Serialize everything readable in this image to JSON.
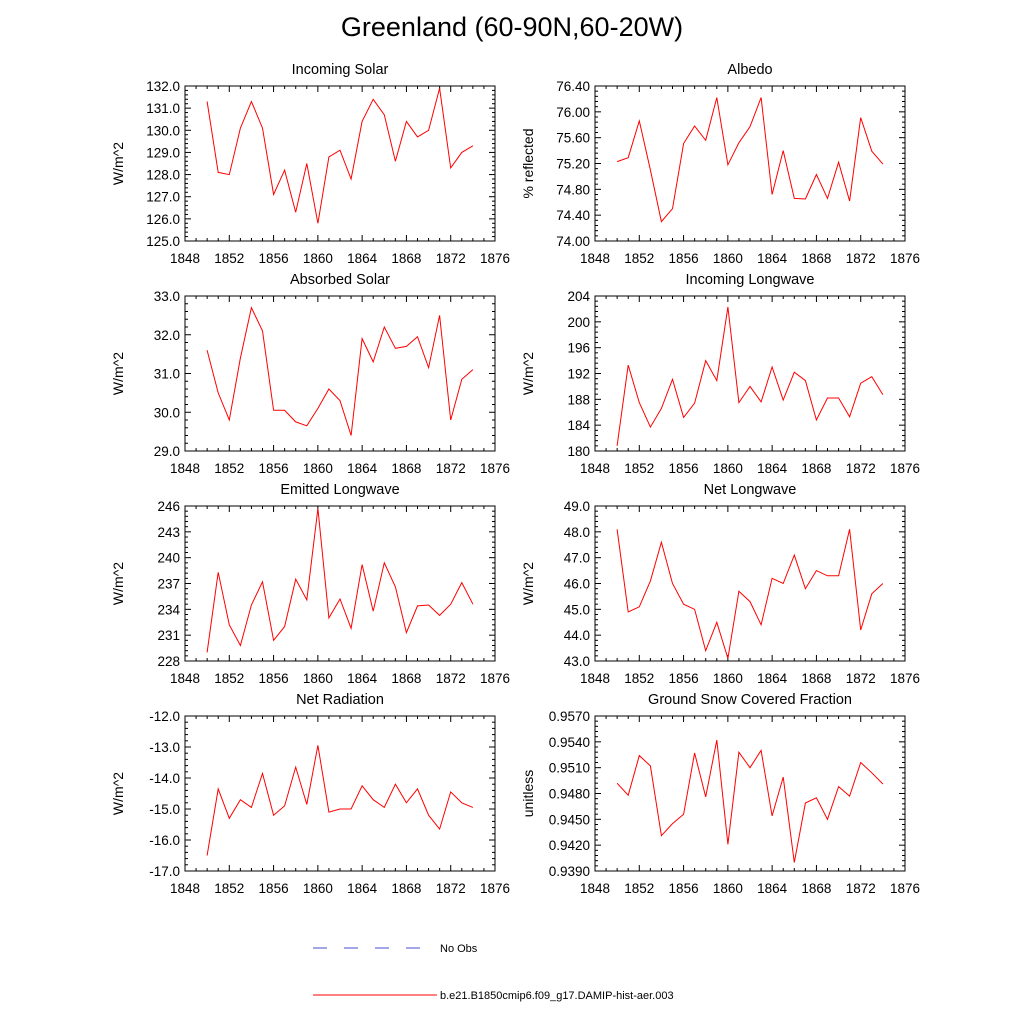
{
  "title": "Greenland (60-90N,60-20W)",
  "legend": {
    "obs_label": "No Obs",
    "model_label": "b.e21.B1850cmip6.f09_g17.DAMIP-hist-aer.003",
    "obs_color": "#4b4bd6",
    "model_color": "#ff0000"
  },
  "chart_data": [
    {
      "type": "line",
      "title": "Incoming Solar",
      "ylabel": "W/m^2",
      "xlim": [
        1848,
        1876
      ],
      "ylim": [
        125.0,
        132.0
      ],
      "x_ticks": [
        "1848",
        "1852",
        "1856",
        "1860",
        "1864",
        "1868",
        "1872",
        "1876"
      ],
      "y_ticks": [
        "125.0",
        "126.0",
        "127.0",
        "128.0",
        "129.0",
        "130.0",
        "131.0",
        "132.0"
      ],
      "x": [
        1850,
        1851,
        1852,
        1853,
        1854,
        1855,
        1856,
        1857,
        1858,
        1859,
        1860,
        1861,
        1862,
        1863,
        1864,
        1865,
        1866,
        1867,
        1868,
        1869,
        1870,
        1871,
        1872,
        1873,
        1874
      ],
      "values": [
        131.3,
        128.1,
        128.0,
        130.1,
        131.3,
        130.1,
        127.1,
        128.2,
        126.3,
        128.5,
        125.8,
        128.8,
        129.1,
        127.8,
        130.4,
        131.4,
        130.7,
        128.6,
        130.4,
        129.7,
        130.0,
        131.9,
        128.3,
        129.0,
        129.3
      ]
    },
    {
      "type": "line",
      "title": "Albedo",
      "ylabel": "% reflected",
      "xlim": [
        1848,
        1876
      ],
      "ylim": [
        74.0,
        76.4
      ],
      "x_ticks": [
        "1848",
        "1852",
        "1856",
        "1860",
        "1864",
        "1868",
        "1872",
        "1876"
      ],
      "y_ticks": [
        "74.00",
        "74.40",
        "74.80",
        "75.20",
        "75.60",
        "76.00",
        "76.40"
      ],
      "x": [
        1850,
        1851,
        1852,
        1853,
        1854,
        1855,
        1856,
        1857,
        1858,
        1859,
        1860,
        1861,
        1862,
        1863,
        1864,
        1865,
        1866,
        1867,
        1868,
        1869,
        1870,
        1871,
        1872,
        1873,
        1874
      ],
      "values": [
        75.23,
        75.29,
        75.86,
        75.1,
        74.3,
        74.5,
        75.51,
        75.78,
        75.56,
        76.22,
        75.18,
        75.52,
        75.77,
        76.22,
        74.72,
        75.4,
        74.66,
        74.65,
        75.03,
        74.66,
        75.22,
        74.62,
        75.91,
        75.39,
        75.19
      ]
    },
    {
      "type": "line",
      "title": "Absorbed Solar",
      "ylabel": "W/m^2",
      "xlim": [
        1848,
        1876
      ],
      "ylim": [
        29.0,
        33.0
      ],
      "x_ticks": [
        "1848",
        "1852",
        "1856",
        "1860",
        "1864",
        "1868",
        "1872",
        "1876"
      ],
      "y_ticks": [
        "29.0",
        "30.0",
        "31.0",
        "32.0",
        "33.0"
      ],
      "x": [
        1850,
        1851,
        1852,
        1853,
        1854,
        1855,
        1856,
        1857,
        1858,
        1859,
        1860,
        1861,
        1862,
        1863,
        1864,
        1865,
        1866,
        1867,
        1868,
        1869,
        1870,
        1871,
        1872,
        1873,
        1874
      ],
      "values": [
        31.6,
        30.5,
        29.8,
        31.4,
        32.7,
        32.1,
        30.05,
        30.05,
        29.75,
        29.65,
        30.1,
        30.6,
        30.3,
        29.4,
        31.9,
        31.3,
        32.2,
        31.65,
        31.7,
        31.95,
        31.15,
        32.5,
        29.8,
        30.85,
        31.1
      ]
    },
    {
      "type": "line",
      "title": "Incoming Longwave",
      "ylabel": "W/m^2",
      "xlim": [
        1848,
        1876
      ],
      "ylim": [
        180,
        204
      ],
      "x_ticks": [
        "1848",
        "1852",
        "1856",
        "1860",
        "1864",
        "1868",
        "1872",
        "1876"
      ],
      "y_ticks": [
        "180",
        "184",
        "188",
        "192",
        "196",
        "200",
        "204"
      ],
      "x": [
        1850,
        1851,
        1852,
        1853,
        1854,
        1855,
        1856,
        1857,
        1858,
        1859,
        1860,
        1861,
        1862,
        1863,
        1864,
        1865,
        1866,
        1867,
        1868,
        1869,
        1870,
        1871,
        1872,
        1873,
        1874
      ],
      "values": [
        180.8,
        193.3,
        187.5,
        183.7,
        186.6,
        191.1,
        185.2,
        187.4,
        194.0,
        190.9,
        202.3,
        187.5,
        190.0,
        187.6,
        193.0,
        187.9,
        192.2,
        190.9,
        184.8,
        188.2,
        188.2,
        185.3,
        190.5,
        191.5,
        188.7
      ]
    },
    {
      "type": "line",
      "title": "Emitted Longwave",
      "ylabel": "W/m^2",
      "xlim": [
        1848,
        1876
      ],
      "ylim": [
        228,
        246
      ],
      "x_ticks": [
        "1848",
        "1852",
        "1856",
        "1860",
        "1864",
        "1868",
        "1872",
        "1876"
      ],
      "y_ticks": [
        "228",
        "231",
        "234",
        "237",
        "240",
        "243",
        "246"
      ],
      "x": [
        1850,
        1851,
        1852,
        1853,
        1854,
        1855,
        1856,
        1857,
        1858,
        1859,
        1860,
        1861,
        1862,
        1863,
        1864,
        1865,
        1866,
        1867,
        1868,
        1869,
        1870,
        1871,
        1872,
        1873,
        1874
      ],
      "values": [
        229.0,
        238.3,
        232.2,
        229.8,
        234.5,
        237.2,
        230.4,
        232.0,
        237.5,
        235.1,
        245.7,
        233.0,
        235.2,
        231.8,
        239.2,
        233.8,
        239.4,
        236.6,
        231.3,
        234.4,
        234.5,
        233.3,
        234.6,
        237.1,
        234.6
      ]
    },
    {
      "type": "line",
      "title": "Net Longwave",
      "ylabel": "W/m^2",
      "xlim": [
        1848,
        1876
      ],
      "ylim": [
        43.0,
        49.0
      ],
      "x_ticks": [
        "1848",
        "1852",
        "1856",
        "1860",
        "1864",
        "1868",
        "1872",
        "1876"
      ],
      "y_ticks": [
        "43.0",
        "44.0",
        "45.0",
        "46.0",
        "47.0",
        "48.0",
        "49.0"
      ],
      "x": [
        1850,
        1851,
        1852,
        1853,
        1854,
        1855,
        1856,
        1857,
        1858,
        1859,
        1860,
        1861,
        1862,
        1863,
        1864,
        1865,
        1866,
        1867,
        1868,
        1869,
        1870,
        1871,
        1872,
        1873,
        1874
      ],
      "values": [
        48.1,
        44.9,
        45.1,
        46.1,
        47.6,
        46.0,
        45.2,
        45.0,
        43.4,
        44.5,
        43.1,
        45.7,
        45.3,
        44.4,
        46.2,
        46.0,
        47.1,
        45.8,
        46.5,
        46.3,
        46.3,
        48.1,
        44.2,
        45.6,
        46.0
      ]
    },
    {
      "type": "line",
      "title": "Net Radiation",
      "ylabel": "W/m^2",
      "xlim": [
        1848,
        1876
      ],
      "ylim": [
        -17.0,
        -12.0
      ],
      "x_ticks": [
        "1848",
        "1852",
        "1856",
        "1860",
        "1864",
        "1868",
        "1872",
        "1876"
      ],
      "y_ticks": [
        "-17.0",
        "-16.0",
        "-15.0",
        "-14.0",
        "-13.0",
        "-12.0"
      ],
      "x": [
        1850,
        1851,
        1852,
        1853,
        1854,
        1855,
        1856,
        1857,
        1858,
        1859,
        1860,
        1861,
        1862,
        1863,
        1864,
        1865,
        1866,
        1867,
        1868,
        1869,
        1870,
        1871,
        1872,
        1873,
        1874
      ],
      "values": [
        -16.5,
        -14.35,
        -15.3,
        -14.7,
        -14.95,
        -13.85,
        -15.2,
        -14.9,
        -13.65,
        -14.85,
        -12.95,
        -15.1,
        -15.0,
        -15.0,
        -14.25,
        -14.7,
        -14.95,
        -14.2,
        -14.8,
        -14.35,
        -15.2,
        -15.65,
        -14.45,
        -14.8,
        -14.95
      ]
    },
    {
      "type": "line",
      "title": "Ground Snow Covered Fraction",
      "ylabel": "unitless",
      "xlim": [
        1848,
        1876
      ],
      "ylim": [
        0.939,
        0.957
      ],
      "x_ticks": [
        "1848",
        "1852",
        "1856",
        "1860",
        "1864",
        "1868",
        "1872",
        "1876"
      ],
      "y_ticks": [
        "0.9390",
        "0.9420",
        "0.9450",
        "0.9480",
        "0.9510",
        "0.9540",
        "0.9570"
      ],
      "x": [
        1850,
        1851,
        1852,
        1853,
        1854,
        1855,
        1856,
        1857,
        1858,
        1859,
        1860,
        1861,
        1862,
        1863,
        1864,
        1865,
        1866,
        1867,
        1868,
        1869,
        1870,
        1871,
        1872,
        1873,
        1874
      ],
      "values": [
        0.9492,
        0.9478,
        0.9524,
        0.9512,
        0.9431,
        0.9445,
        0.9456,
        0.9527,
        0.9476,
        0.9542,
        0.9421,
        0.9528,
        0.951,
        0.953,
        0.9454,
        0.9499,
        0.94,
        0.9469,
        0.9475,
        0.945,
        0.9488,
        0.9477,
        0.9516,
        0.9504,
        0.9491
      ]
    }
  ]
}
